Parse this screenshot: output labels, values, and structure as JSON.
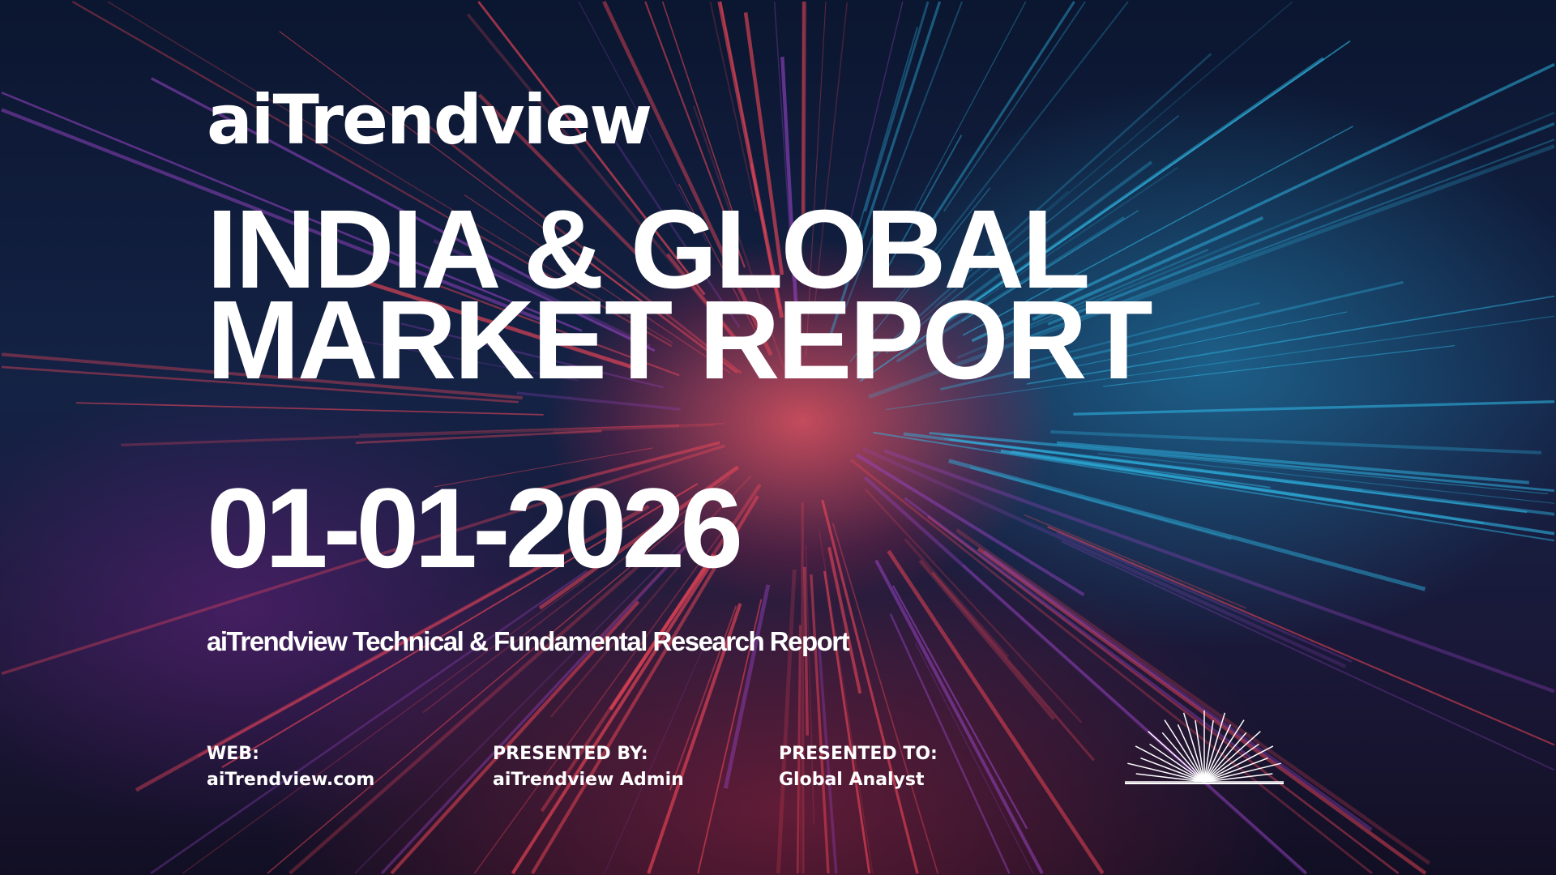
{
  "brand": "aiTrendview",
  "title_line1": "INDIA & GLOBAL",
  "title_line2": "MARKET REPORT",
  "date": "01-01-2026",
  "subtitle": "aiTrendview Technical & Fundamental Research Report",
  "footer": [
    {
      "label": "WEB:",
      "value": "aiTrendview.com"
    },
    {
      "label": "PRESENTED BY:",
      "value": "aiTrendview Admin"
    },
    {
      "label": "PRESENTED TO:",
      "value": "Global Analyst"
    }
  ],
  "icons": {
    "sunburst": "sunburst-icon"
  },
  "colors": {
    "background": "#0b1630",
    "accent_red": "#ff4a5a",
    "accent_cyan": "#2fb8e6",
    "text": "#ffffff"
  }
}
